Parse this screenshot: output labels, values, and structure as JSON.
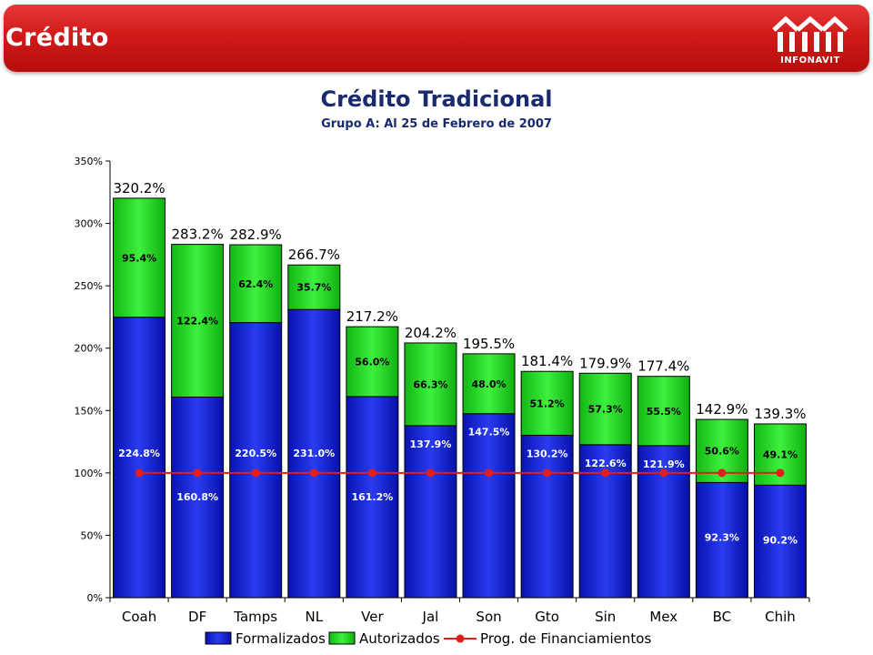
{
  "header": {
    "title": "Crédito",
    "logo_text": "INFONAVIT"
  },
  "colors": {
    "header_red": "#d11a1a",
    "title_navy": "#1a2a6e",
    "formalizados": "#0a14c8",
    "autorizados": "#1fd01f",
    "programa": "#e01e1e"
  },
  "chart_data": {
    "type": "bar",
    "stacked": true,
    "title": "Crédito Tradicional",
    "subtitle": "Grupo A: Al 25 de Febrero de 2007",
    "xlabel": "",
    "ylabel": "",
    "ylim": [
      0,
      350
    ],
    "yticks": [
      "0%",
      "50%",
      "100%",
      "150%",
      "200%",
      "250%",
      "300%",
      "350%"
    ],
    "categories": [
      "Coah",
      "DF",
      "Tamps",
      "NL",
      "Ver",
      "Jal",
      "Son",
      "Gto",
      "Sin",
      "Mex",
      "BC",
      "Chih"
    ],
    "series": [
      {
        "name": "Formalizados",
        "values": [
          224.8,
          160.8,
          220.5,
          231.0,
          161.2,
          137.9,
          147.5,
          130.2,
          122.6,
          121.9,
          92.3,
          90.2
        ],
        "labels": [
          "224.8%",
          "160.8%",
          "220.5%",
          "231.0%",
          "161.2%",
          "137.9%",
          "147.5%",
          "130.2%",
          "122.6%",
          "121.9%",
          "92.3%",
          "90.2%"
        ]
      },
      {
        "name": "Autorizados",
        "values": [
          95.4,
          122.4,
          62.4,
          35.7,
          56.0,
          66.3,
          48.0,
          51.2,
          57.3,
          55.5,
          50.6,
          49.1
        ],
        "labels": [
          "95.4%",
          "122.4%",
          "62.4%",
          "35.7%",
          "56.0%",
          "66.3%",
          "48.0%",
          "51.2%",
          "57.3%",
          "55.5%",
          "50.6%",
          "49.1%"
        ]
      },
      {
        "name": "Prog. de Financiamientos",
        "type": "line",
        "values": [
          100,
          100,
          100,
          100,
          100,
          100,
          100,
          100,
          100,
          100,
          100,
          100
        ]
      }
    ],
    "totals": [
      "320.2%",
      "283.2%",
      "282.9%",
      "266.7%",
      "217.2%",
      "204.2%",
      "195.5%",
      "181.4%",
      "179.9%",
      "177.4%",
      "142.9%",
      "139.3%"
    ],
    "legend": {
      "placement": "bottom",
      "items": [
        "Formalizados",
        "Autorizados",
        "Prog. de Financiamientos"
      ]
    },
    "grid": false
  }
}
